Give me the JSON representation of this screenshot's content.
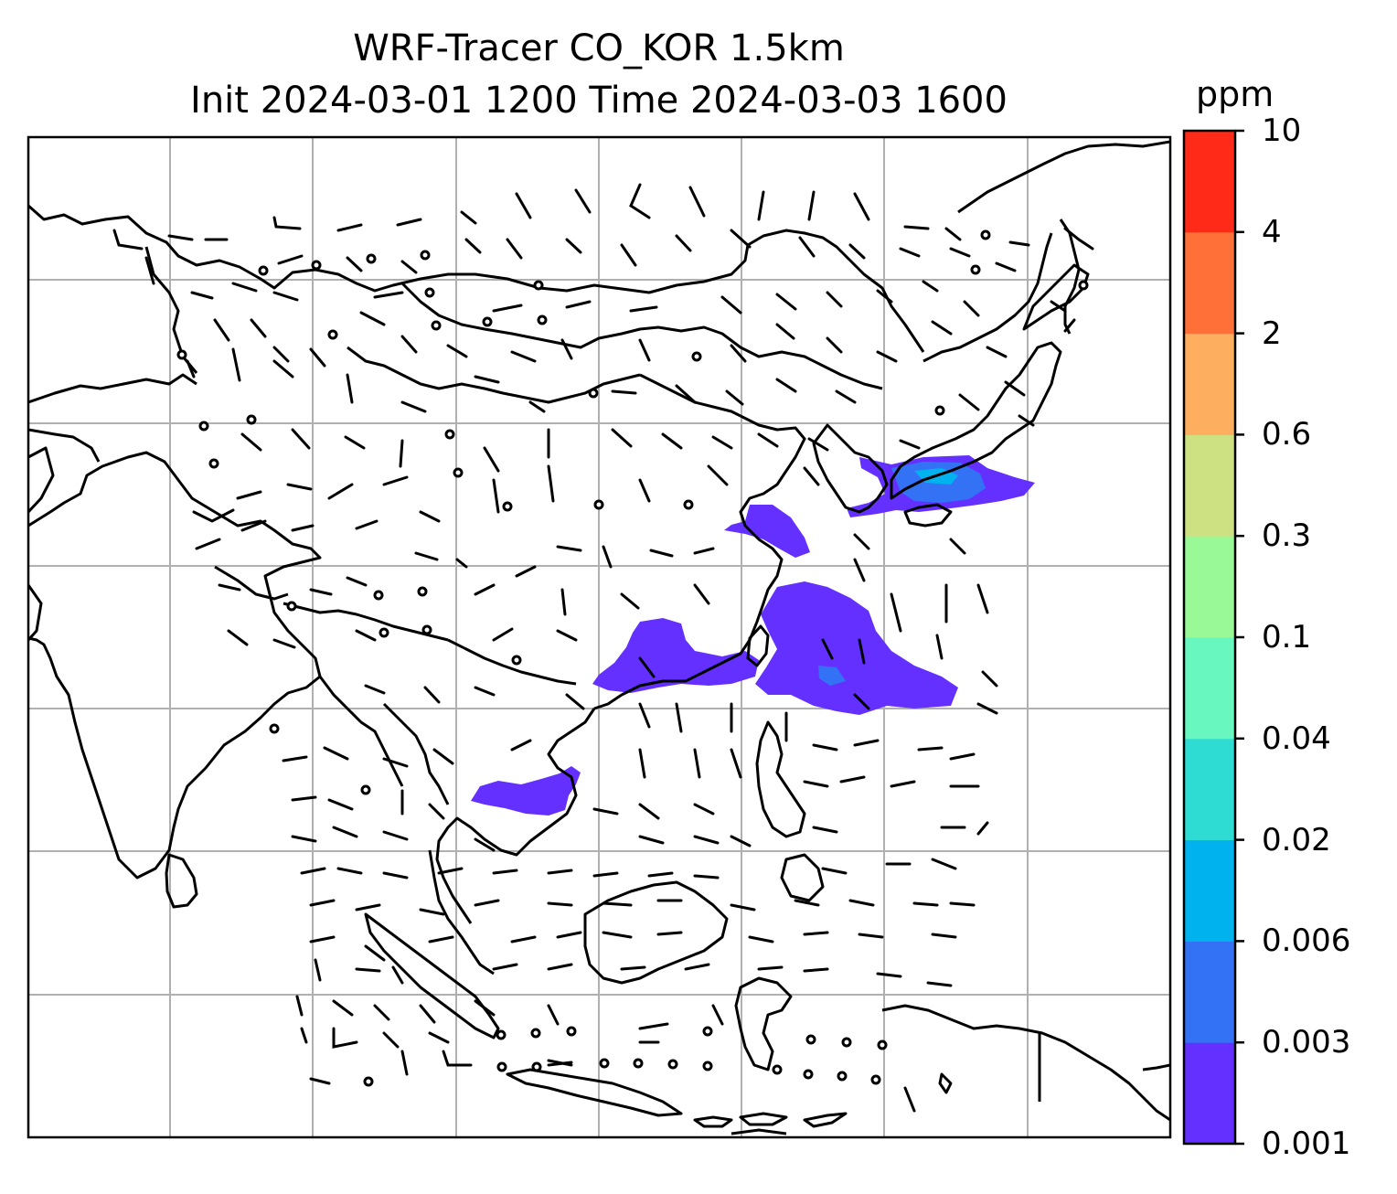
{
  "title": {
    "line1": "WRF-Tracer CO_KOR 1.5km",
    "line2": "Init 2024-03-01 1200 Time 2024-03-03 1600"
  },
  "colorbar": {
    "unit": "ppm",
    "levels": [
      "0.001",
      "0.003",
      "0.006",
      "0.02",
      "0.04",
      "0.1",
      "0.3",
      "0.6",
      "2",
      "4",
      "10"
    ],
    "colors": [
      "#6430ff",
      "#3472f5",
      "#00b2ee",
      "#2fdcd4",
      "#68f7be",
      "#99f996",
      "#cde182",
      "#fdaf5f",
      "#ff7038",
      "#ff2a17"
    ]
  },
  "map": {
    "gridlines": true,
    "tracer_color": "#6430ff",
    "tracer_color_dense": "#3472f5",
    "tracer_color_core": "#00b2ee"
  }
}
